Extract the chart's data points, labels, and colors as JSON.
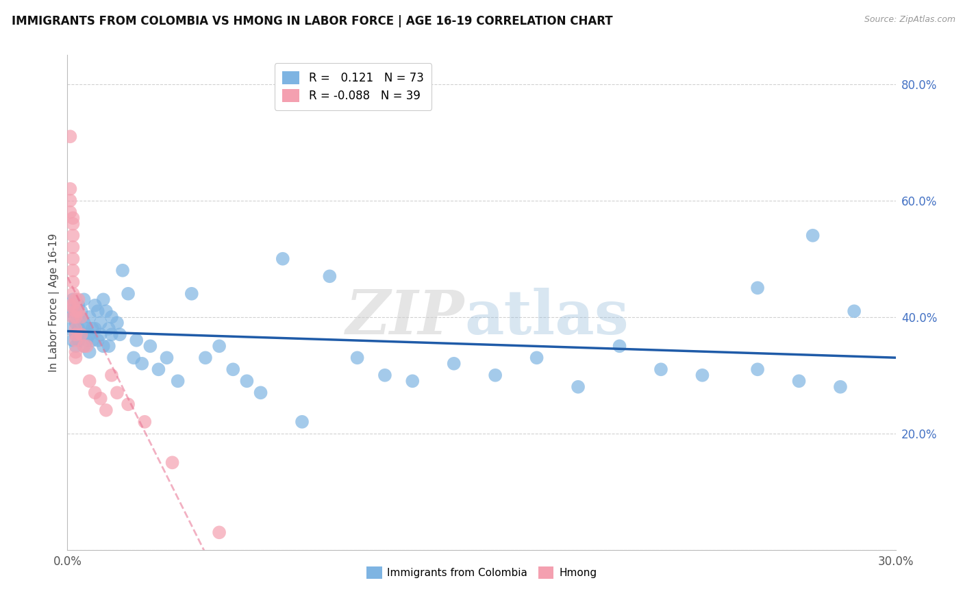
{
  "title": "IMMIGRANTS FROM COLOMBIA VS HMONG IN LABOR FORCE | AGE 16-19 CORRELATION CHART",
  "source": "Source: ZipAtlas.com",
  "ylabel": "In Labor Force | Age 16-19",
  "xlim": [
    0.0,
    0.3
  ],
  "ylim": [
    0.0,
    0.85
  ],
  "xticks": [
    0.0,
    0.05,
    0.1,
    0.15,
    0.2,
    0.25,
    0.3
  ],
  "xticklabels": [
    "0.0%",
    "",
    "",
    "",
    "",
    "",
    "30.0%"
  ],
  "yticks": [
    0.0,
    0.2,
    0.4,
    0.6,
    0.8
  ],
  "yticklabels": [
    "",
    "20.0%",
    "40.0%",
    "60.0%",
    "80.0%"
  ],
  "colombia_color": "#7EB4E2",
  "hmong_color": "#F4A0B0",
  "colombia_line_color": "#1F5BA8",
  "hmong_line_color": "#E87090",
  "ytick_color": "#4472C4",
  "legend_R_colombia": "R =   0.121",
  "legend_N_colombia": "N = 73",
  "legend_R_hmong": "R = -0.088",
  "legend_N_hmong": "N = 39",
  "legend_label_colombia": "Immigrants from Colombia",
  "legend_label_hmong": "Hmong",
  "colombia_x": [
    0.001,
    0.001,
    0.002,
    0.002,
    0.002,
    0.003,
    0.003,
    0.003,
    0.004,
    0.004,
    0.004,
    0.005,
    0.005,
    0.005,
    0.006,
    0.006,
    0.006,
    0.007,
    0.007,
    0.008,
    0.008,
    0.008,
    0.009,
    0.009,
    0.01,
    0.01,
    0.011,
    0.011,
    0.012,
    0.012,
    0.013,
    0.013,
    0.014,
    0.015,
    0.015,
    0.016,
    0.016,
    0.018,
    0.019,
    0.02,
    0.022,
    0.024,
    0.025,
    0.027,
    0.03,
    0.033,
    0.036,
    0.04,
    0.045,
    0.05,
    0.055,
    0.06,
    0.065,
    0.07,
    0.078,
    0.085,
    0.095,
    0.105,
    0.115,
    0.125,
    0.14,
    0.155,
    0.17,
    0.185,
    0.2,
    0.215,
    0.23,
    0.25,
    0.265,
    0.28,
    0.25,
    0.27,
    0.285
  ],
  "colombia_y": [
    0.38,
    0.41,
    0.4,
    0.36,
    0.43,
    0.37,
    0.35,
    0.39,
    0.42,
    0.38,
    0.36,
    0.41,
    0.37,
    0.4,
    0.35,
    0.39,
    0.43,
    0.36,
    0.38,
    0.4,
    0.37,
    0.34,
    0.38,
    0.36,
    0.42,
    0.38,
    0.41,
    0.36,
    0.39,
    0.37,
    0.43,
    0.35,
    0.41,
    0.38,
    0.35,
    0.4,
    0.37,
    0.39,
    0.37,
    0.48,
    0.44,
    0.33,
    0.36,
    0.32,
    0.35,
    0.31,
    0.33,
    0.29,
    0.44,
    0.33,
    0.35,
    0.31,
    0.29,
    0.27,
    0.5,
    0.22,
    0.47,
    0.33,
    0.3,
    0.29,
    0.32,
    0.3,
    0.33,
    0.28,
    0.35,
    0.31,
    0.3,
    0.31,
    0.29,
    0.28,
    0.45,
    0.54,
    0.41
  ],
  "hmong_x": [
    0.001,
    0.001,
    0.001,
    0.001,
    0.001,
    0.002,
    0.002,
    0.002,
    0.002,
    0.002,
    0.002,
    0.002,
    0.002,
    0.002,
    0.002,
    0.003,
    0.003,
    0.003,
    0.003,
    0.003,
    0.003,
    0.003,
    0.003,
    0.004,
    0.004,
    0.005,
    0.005,
    0.006,
    0.007,
    0.008,
    0.01,
    0.012,
    0.014,
    0.016,
    0.018,
    0.022,
    0.028,
    0.038,
    0.055
  ],
  "hmong_y": [
    0.71,
    0.62,
    0.6,
    0.58,
    0.42,
    0.57,
    0.54,
    0.56,
    0.52,
    0.5,
    0.48,
    0.46,
    0.44,
    0.42,
    0.4,
    0.43,
    0.41,
    0.4,
    0.38,
    0.37,
    0.36,
    0.34,
    0.33,
    0.43,
    0.41,
    0.4,
    0.37,
    0.35,
    0.35,
    0.29,
    0.27,
    0.26,
    0.24,
    0.3,
    0.27,
    0.25,
    0.22,
    0.15,
    0.03
  ]
}
